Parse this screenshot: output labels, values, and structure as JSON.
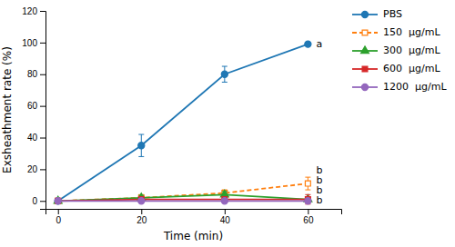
{
  "chart_data": {
    "type": "line",
    "xlabel": "Time (min)",
    "ylabel": "Exsheathment rate (%)",
    "x": [
      0,
      20,
      40,
      60
    ],
    "series": [
      {
        "name": "PBS",
        "values": [
          0,
          35,
          80,
          99
        ],
        "errors": [
          0,
          7,
          5,
          1
        ],
        "marker": "circle",
        "line_style": "solid"
      },
      {
        "name": "150  μg/mL",
        "values": [
          0,
          2,
          5,
          11
        ],
        "errors": [
          0,
          2,
          2,
          4
        ],
        "marker": "square-open",
        "line_style": "dashed"
      },
      {
        "name": "300  μg/mL",
        "values": [
          0,
          2,
          4,
          1
        ],
        "errors": [
          0,
          1.5,
          2,
          0.5
        ],
        "marker": "triangle",
        "line_style": "solid"
      },
      {
        "name": "600  μg/mL",
        "values": [
          0,
          1,
          1,
          1
        ],
        "errors": [
          0,
          0.5,
          0.5,
          3
        ],
        "marker": "square",
        "line_style": "solid"
      },
      {
        "name": "1200  μg/mL",
        "values": [
          0,
          0,
          0,
          0
        ],
        "errors": [
          0,
          0.3,
          0.3,
          0.3
        ],
        "marker": "circle",
        "line_style": "solid"
      }
    ],
    "annotations": [
      {
        "text": "a",
        "x": 60,
        "y": 99
      },
      {
        "text": "b",
        "x": 60,
        "y": 11
      },
      {
        "text": "b",
        "x": 60,
        "y": 1
      },
      {
        "text": "b",
        "x": 60,
        "y": 1
      },
      {
        "text": "b",
        "x": 60,
        "y": 0
      }
    ],
    "xlim": [
      -3,
      68
    ],
    "ylim": [
      -5,
      120
    ],
    "xticks": [
      0,
      20,
      40,
      60
    ],
    "yticks": [
      0,
      20,
      40,
      60,
      80,
      100,
      120
    ],
    "grid": false,
    "legend": "right"
  }
}
